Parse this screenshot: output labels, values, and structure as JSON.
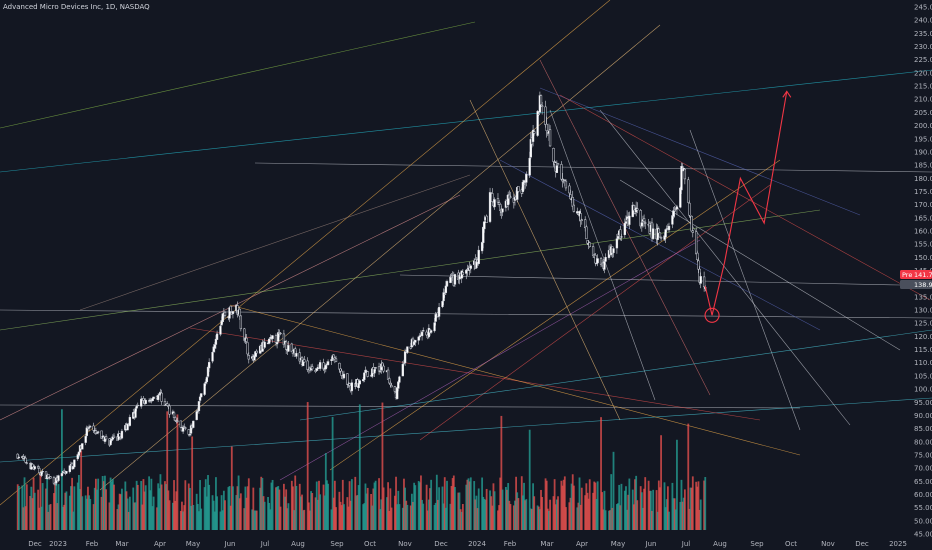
{
  "header": {
    "title": "Advanced Micro Devices Inc, 1D, NASDAQ"
  },
  "price_badges": {
    "pre_label": "Pre",
    "pre_value": "141.70",
    "last_value": "138.99",
    "pre_color": "#f23645",
    "last_color": "#4a4f5c"
  },
  "chart_data": {
    "type": "candlestick",
    "symbol": "AMD",
    "interval": "1D",
    "exchange": "NASDAQ",
    "y_axis": {
      "min": 45,
      "max": 245,
      "step": 5,
      "side": "right"
    },
    "x_axis": {
      "ticks": [
        "Dec",
        "2023",
        "Feb",
        "Mar",
        "Apr",
        "May",
        "Jun",
        "Jul",
        "Aug",
        "Sep",
        "Oct",
        "Nov",
        "Dec",
        "2024",
        "Feb",
        "Mar",
        "Apr",
        "May",
        "Jun",
        "Jul",
        "Aug",
        "Sep",
        "Oct",
        "Nov",
        "Dec",
        "2025"
      ]
    },
    "price_path": [
      [
        "2022-12-01",
        75
      ],
      [
        "2022-12-15",
        70
      ],
      [
        "2023-01-03",
        65
      ],
      [
        "2023-01-20",
        72
      ],
      [
        "2023-02-01",
        85
      ],
      [
        "2023-02-20",
        80
      ],
      [
        "2023-03-01",
        82
      ],
      [
        "2023-03-20",
        95
      ],
      [
        "2023-04-05",
        98
      ],
      [
        "2023-04-20",
        88
      ],
      [
        "2023-05-01",
        82
      ],
      [
        "2023-05-15",
        102
      ],
      [
        "2023-05-31",
        128
      ],
      [
        "2023-06-13",
        130
      ],
      [
        "2023-06-25",
        110
      ],
      [
        "2023-07-05",
        116
      ],
      [
        "2023-07-20",
        120
      ],
      [
        "2023-08-05",
        112
      ],
      [
        "2023-08-20",
        107
      ],
      [
        "2023-09-05",
        112
      ],
      [
        "2023-09-20",
        100
      ],
      [
        "2023-10-05",
        106
      ],
      [
        "2023-10-20",
        108
      ],
      [
        "2023-10-31",
        98
      ],
      [
        "2023-11-10",
        116
      ],
      [
        "2023-11-30",
        122
      ],
      [
        "2023-12-07",
        128
      ],
      [
        "2023-12-15",
        140
      ],
      [
        "2023-12-28",
        143
      ],
      [
        "2024-01-10",
        148
      ],
      [
        "2024-01-22",
        172
      ],
      [
        "2024-01-31",
        168
      ],
      [
        "2024-02-10",
        172
      ],
      [
        "2024-02-22",
        178
      ],
      [
        "2024-03-01",
        200
      ],
      [
        "2024-03-07",
        211
      ],
      [
        "2024-03-20",
        185
      ],
      [
        "2024-04-01",
        172
      ],
      [
        "2024-04-12",
        165
      ],
      [
        "2024-04-22",
        150
      ],
      [
        "2024-05-01",
        148
      ],
      [
        "2024-05-15",
        158
      ],
      [
        "2024-05-28",
        168
      ],
      [
        "2024-06-10",
        160
      ],
      [
        "2024-06-24",
        158
      ],
      [
        "2024-07-05",
        170
      ],
      [
        "2024-07-10",
        185
      ],
      [
        "2024-07-17",
        165
      ],
      [
        "2024-07-25",
        142
      ],
      [
        "2024-07-30",
        139
      ]
    ],
    "projection": [
      [
        "2024-07-30",
        139
      ],
      [
        "2024-08-05",
        128
      ],
      [
        "2024-08-16",
        148
      ],
      [
        "2024-08-30",
        180
      ],
      [
        "2024-09-20",
        163
      ],
      [
        "2024-10-10",
        213
      ]
    ],
    "highlight_circle": {
      "date": "2024-08-05",
      "price": 128
    },
    "volume_axis_ticks": [
      "0",
      "1"
    ],
    "legend": "none",
    "grid": false
  }
}
